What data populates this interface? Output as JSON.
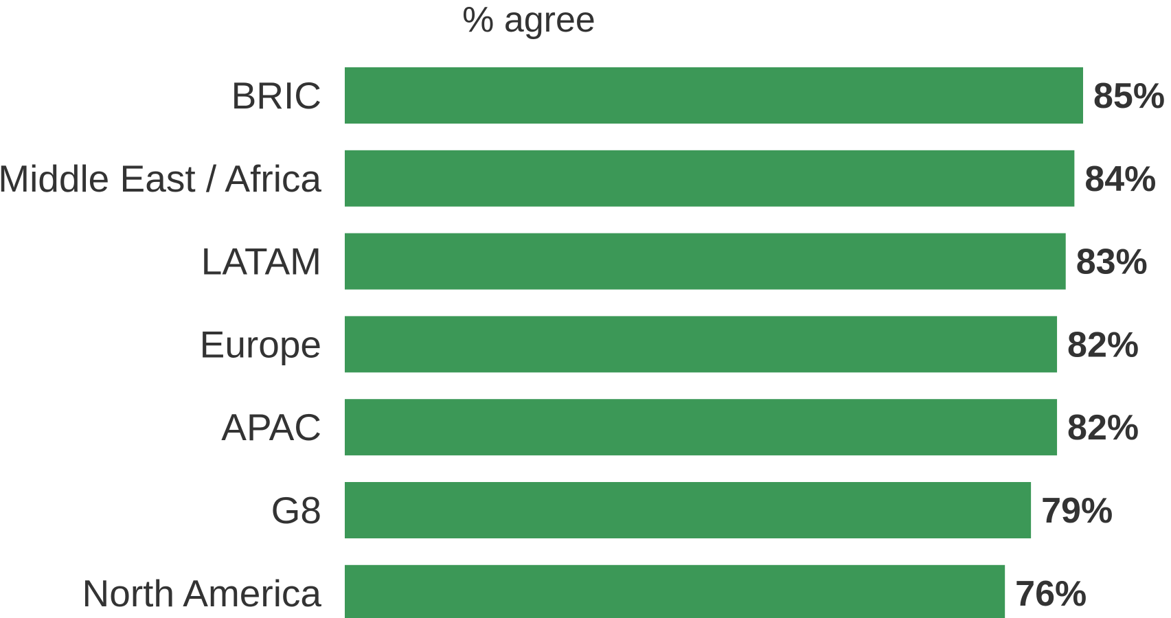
{
  "chart_data": {
    "type": "bar",
    "orientation": "horizontal",
    "title": "% agree",
    "categories": [
      "BRIC",
      "Middle East / Africa",
      "LATAM",
      "Europe",
      "APAC",
      "G8",
      "North America"
    ],
    "values": [
      85,
      84,
      83,
      82,
      82,
      79,
      76
    ],
    "value_labels": [
      "85%",
      "84%",
      "83%",
      "82%",
      "82%",
      "79%",
      "76%"
    ],
    "xlim": [
      0,
      85
    ],
    "grid": false,
    "legend": "none",
    "bar_color": "#3c9857",
    "text_color": "#333333"
  }
}
